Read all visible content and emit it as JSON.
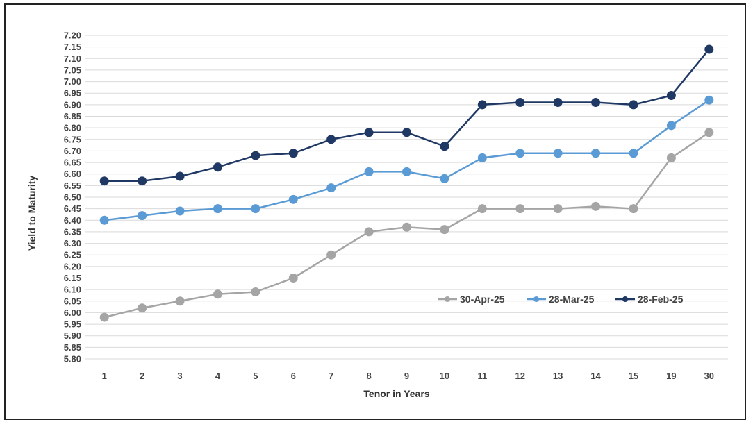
{
  "chart_data": {
    "type": "line",
    "categories": [
      "1",
      "2",
      "3",
      "4",
      "5",
      "6",
      "7",
      "8",
      "9",
      "10",
      "11",
      "12",
      "13",
      "14",
      "15",
      "19",
      "30"
    ],
    "xlabel": "Tenor in Years",
    "ylabel": "Yield to Maturity",
    "ylim": [
      5.8,
      7.2
    ],
    "ytick_step": 0.05,
    "grid": true,
    "legend_position": "bottom-right",
    "series": [
      {
        "name": "30-Apr-25",
        "color": "#a5a5a5",
        "values": [
          5.98,
          6.02,
          6.05,
          6.08,
          6.09,
          6.15,
          6.25,
          6.35,
          6.37,
          6.36,
          6.45,
          6.45,
          6.45,
          6.46,
          6.45,
          6.67,
          6.78
        ]
      },
      {
        "name": "28-Mar-25",
        "color": "#5b9bd5",
        "values": [
          6.4,
          6.42,
          6.44,
          6.45,
          6.45,
          6.49,
          6.54,
          6.61,
          6.61,
          6.58,
          6.67,
          6.69,
          6.69,
          6.69,
          6.69,
          6.81,
          6.92
        ]
      },
      {
        "name": "28-Feb-25",
        "color": "#1f3864",
        "values": [
          6.57,
          6.57,
          6.59,
          6.63,
          6.68,
          6.69,
          6.75,
          6.78,
          6.78,
          6.72,
          6.9,
          6.91,
          6.91,
          6.91,
          6.9,
          6.94,
          7.14
        ]
      }
    ]
  }
}
